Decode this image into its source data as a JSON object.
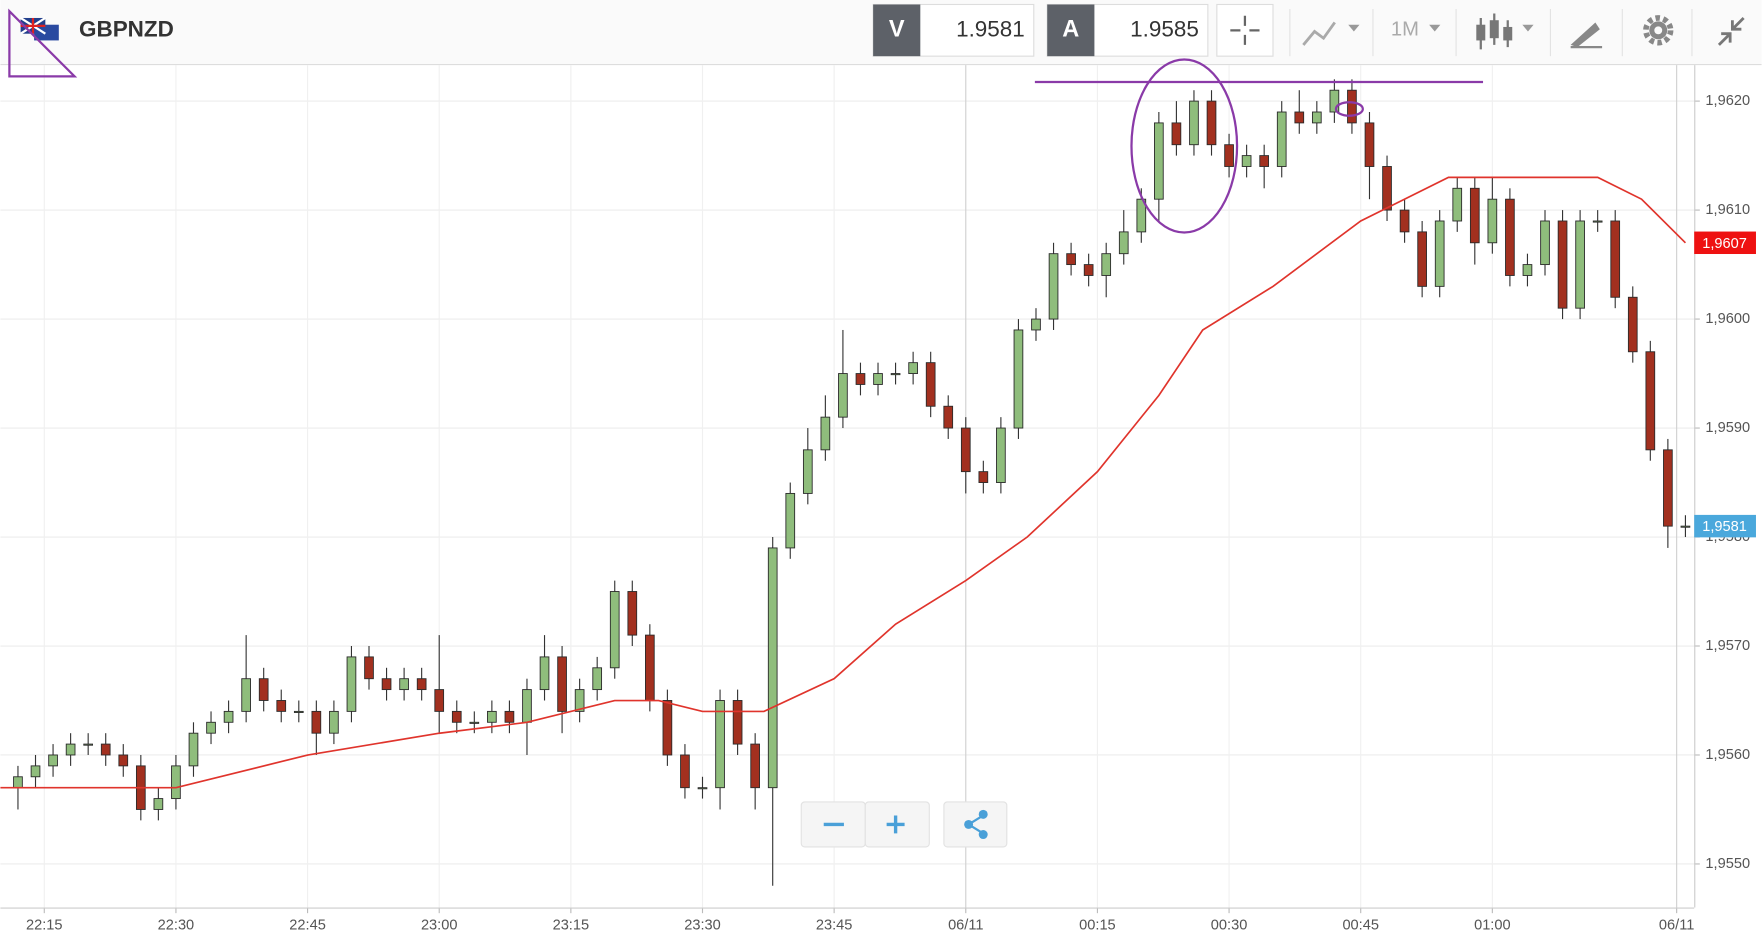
{
  "header": {
    "symbol": "GBPNZD",
    "bid_label": "V",
    "bid": "1.9581",
    "ask_label": "A",
    "ask": "1.9585",
    "timeframe": "1M"
  },
  "chart_data": {
    "type": "candlestick",
    "up_color": "#8fbd7c",
    "down_color": "#a2301f",
    "x": [
      "22:12",
      "22:14",
      "22:16",
      "22:18",
      "22:20",
      "22:22",
      "22:24",
      "22:26",
      "22:28",
      "22:30",
      "22:32",
      "22:34",
      "22:36",
      "22:38",
      "22:40",
      "22:42",
      "22:44",
      "22:46",
      "22:48",
      "22:50",
      "22:52",
      "22:54",
      "22:56",
      "22:58",
      "23:00",
      "23:02",
      "23:04",
      "23:06",
      "23:08",
      "23:10",
      "23:12",
      "23:14",
      "23:16",
      "23:18",
      "23:20",
      "23:22",
      "23:24",
      "23:26",
      "23:28",
      "23:30",
      "23:32",
      "23:34",
      "23:36",
      "23:38",
      "23:40",
      "23:42",
      "23:44",
      "23:46",
      "23:48",
      "23:50",
      "23:52",
      "23:54",
      "23:56",
      "23:58",
      "00:00",
      "00:02",
      "00:04",
      "00:06",
      "00:08",
      "00:10",
      "00:12",
      "00:14",
      "00:16",
      "00:18",
      "00:20",
      "00:22",
      "00:24",
      "00:26",
      "00:28",
      "00:30",
      "00:32",
      "00:34",
      "00:36",
      "00:38",
      "00:40",
      "00:42",
      "00:44",
      "00:46",
      "00:48",
      "00:50",
      "00:52",
      "00:54",
      "00:56",
      "00:58",
      "01:00",
      "01:02",
      "01:04",
      "01:06",
      "01:08",
      "01:10",
      "01:12",
      "01:14",
      "01:16",
      "01:18",
      "01:20",
      "01:22"
    ],
    "open": [
      1.9557,
      1.9558,
      1.9559,
      1.956,
      1.9561,
      1.9561,
      1.956,
      1.9559,
      1.9555,
      1.9556,
      1.9559,
      1.9562,
      1.9563,
      1.9564,
      1.9567,
      1.9565,
      1.9564,
      1.9564,
      1.9562,
      1.9564,
      1.9569,
      1.9567,
      1.9566,
      1.9567,
      1.9566,
      1.9564,
      1.9563,
      1.9563,
      1.9564,
      1.9563,
      1.9566,
      1.9569,
      1.9564,
      1.9566,
      1.9568,
      1.9575,
      1.9571,
      1.9565,
      1.956,
      1.9557,
      1.9557,
      1.9565,
      1.9561,
      1.9557,
      1.9579,
      1.9584,
      1.9588,
      1.9591,
      1.9595,
      1.9594,
      1.9595,
      1.9595,
      1.9596,
      1.9592,
      1.959,
      1.9586,
      1.9585,
      1.959,
      1.9599,
      1.96,
      1.9606,
      1.9605,
      1.9604,
      1.9606,
      1.9608,
      1.9611,
      1.9618,
      1.9616,
      1.962,
      1.9616,
      1.9614,
      1.9615,
      1.9614,
      1.9619,
      1.9618,
      1.9619,
      1.9621,
      1.9618,
      1.9614,
      1.961,
      1.9608,
      1.9603,
      1.9609,
      1.9612,
      1.9607,
      1.9611,
      1.9604,
      1.9605,
      1.9609,
      1.9601,
      1.9609,
      1.9609,
      1.9602,
      1.9597,
      1.9588,
      1.9581
    ],
    "high": [
      1.9559,
      1.956,
      1.9561,
      1.9562,
      1.9562,
      1.9562,
      1.9561,
      1.956,
      1.9557,
      1.956,
      1.9563,
      1.9564,
      1.9565,
      1.9571,
      1.9568,
      1.9566,
      1.9565,
      1.9565,
      1.9565,
      1.957,
      1.957,
      1.9568,
      1.9568,
      1.9568,
      1.9571,
      1.9565,
      1.9564,
      1.9565,
      1.9565,
      1.9567,
      1.9571,
      1.957,
      1.9567,
      1.9569,
      1.9576,
      1.9576,
      1.9572,
      1.9566,
      1.9561,
      1.9558,
      1.9566,
      1.9566,
      1.9562,
      1.958,
      1.9585,
      1.959,
      1.9593,
      1.9599,
      1.9596,
      1.9596,
      1.9596,
      1.9597,
      1.9597,
      1.9593,
      1.9591,
      1.9587,
      1.9591,
      1.96,
      1.9601,
      1.9607,
      1.9607,
      1.9606,
      1.9607,
      1.961,
      1.9612,
      1.9619,
      1.962,
      1.9621,
      1.9621,
      1.9617,
      1.9616,
      1.9616,
      1.962,
      1.9621,
      1.962,
      1.9622,
      1.9622,
      1.9619,
      1.9615,
      1.9611,
      1.9609,
      1.961,
      1.9613,
      1.9613,
      1.9613,
      1.9612,
      1.9606,
      1.961,
      1.961,
      1.961,
      1.961,
      1.961,
      1.9603,
      1.9598,
      1.9589,
      1.9582
    ],
    "low": [
      1.9555,
      1.9557,
      1.9558,
      1.9559,
      1.956,
      1.9559,
      1.9558,
      1.9554,
      1.9554,
      1.9555,
      1.9558,
      1.9561,
      1.9562,
      1.9563,
      1.9564,
      1.9563,
      1.9563,
      1.956,
      1.9561,
      1.9563,
      1.9566,
      1.9565,
      1.9565,
      1.9565,
      1.9562,
      1.9562,
      1.9562,
      1.9562,
      1.9562,
      1.956,
      1.9565,
      1.9562,
      1.9563,
      1.9565,
      1.9567,
      1.957,
      1.9564,
      1.9559,
      1.9556,
      1.9556,
      1.9555,
      1.956,
      1.9555,
      1.9548,
      1.9578,
      1.9583,
      1.9587,
      1.959,
      1.9593,
      1.9593,
      1.9594,
      1.9594,
      1.9591,
      1.9589,
      1.9584,
      1.9584,
      1.9584,
      1.9589,
      1.9598,
      1.9599,
      1.9604,
      1.9603,
      1.9602,
      1.9605,
      1.9607,
      1.9609,
      1.9615,
      1.9615,
      1.9615,
      1.9613,
      1.9613,
      1.9612,
      1.9613,
      1.9617,
      1.9617,
      1.9618,
      1.9617,
      1.9611,
      1.9609,
      1.9607,
      1.9602,
      1.9602,
      1.9608,
      1.9605,
      1.9606,
      1.9603,
      1.9603,
      1.9604,
      1.96,
      1.96,
      1.9608,
      1.9601,
      1.9596,
      1.9587,
      1.9579,
      1.958
    ],
    "close": [
      1.9558,
      1.9559,
      1.956,
      1.9561,
      1.9561,
      1.956,
      1.9559,
      1.9555,
      1.9556,
      1.9559,
      1.9562,
      1.9563,
      1.9564,
      1.9567,
      1.9565,
      1.9564,
      1.9564,
      1.9562,
      1.9564,
      1.9569,
      1.9567,
      1.9566,
      1.9567,
      1.9566,
      1.9564,
      1.9563,
      1.9563,
      1.9564,
      1.9563,
      1.9566,
      1.9569,
      1.9564,
      1.9566,
      1.9568,
      1.9575,
      1.9571,
      1.9565,
      1.956,
      1.9557,
      1.9557,
      1.9565,
      1.9561,
      1.9557,
      1.9579,
      1.9584,
      1.9588,
      1.9591,
      1.9595,
      1.9594,
      1.9595,
      1.9595,
      1.9596,
      1.9592,
      1.959,
      1.9586,
      1.9585,
      1.959,
      1.9599,
      1.96,
      1.9606,
      1.9605,
      1.9604,
      1.9606,
      1.9608,
      1.9611,
      1.9618,
      1.9616,
      1.962,
      1.9616,
      1.9614,
      1.9615,
      1.9614,
      1.9619,
      1.9618,
      1.9619,
      1.9621,
      1.9618,
      1.9614,
      1.961,
      1.9608,
      1.9603,
      1.9609,
      1.9612,
      1.9607,
      1.9611,
      1.9604,
      1.9605,
      1.9609,
      1.9601,
      1.9609,
      1.9609,
      1.9602,
      1.9597,
      1.9588,
      1.9581,
      1.9581
    ],
    "line": {
      "color": "#e0342c",
      "x": [
        "22:10",
        "22:30",
        "22:45",
        "23:00",
        "23:10",
        "23:20",
        "23:25",
        "23:30",
        "23:37",
        "23:45",
        "23:52",
        "00:00",
        "00:07",
        "00:15",
        "00:22",
        "00:27",
        "00:35",
        "00:45",
        "00:55",
        "01:05",
        "01:12",
        "01:17",
        "01:22"
      ],
      "values": [
        1.9557,
        1.9557,
        1.956,
        1.9562,
        1.9563,
        1.9565,
        1.9565,
        1.9564,
        1.9564,
        1.9567,
        1.9572,
        1.9576,
        1.958,
        1.9586,
        1.9593,
        1.9599,
        1.9603,
        1.9609,
        1.9613,
        1.9613,
        1.9613,
        1.9611,
        1.9607
      ]
    },
    "xlim": [
      "22:10",
      "01:23"
    ],
    "xticks": [
      "22:15",
      "22:30",
      "22:45",
      "23:00",
      "23:15",
      "23:30",
      "23:45",
      {
        "value": "00:00",
        "label": "06/11"
      },
      "00:15",
      "00:30",
      "00:45",
      "01:00",
      {
        "value": "01:21",
        "label": "06/11"
      }
    ],
    "ylim": [
      1.9546,
      1.96233
    ],
    "yticks": [
      {
        "value": 1.955,
        "label": "1,9550"
      },
      {
        "value": 1.956,
        "label": "1,9560"
      },
      {
        "value": 1.957,
        "label": "1,9570"
      },
      {
        "value": 1.958,
        "label": "1,9580"
      },
      {
        "value": 1.959,
        "label": "1,9590"
      },
      {
        "value": 1.96,
        "label": "1,9600"
      },
      {
        "value": 1.961,
        "label": "1,9610"
      },
      {
        "value": 1.962,
        "label": "1,9620"
      }
    ],
    "grid": true,
    "price_tags": [
      {
        "value": 1.9607,
        "label": "1,9607",
        "color": "#ee1111"
      },
      {
        "value": 1.9581,
        "label": "1,9581",
        "color": "#4aa8dc"
      }
    ]
  }
}
